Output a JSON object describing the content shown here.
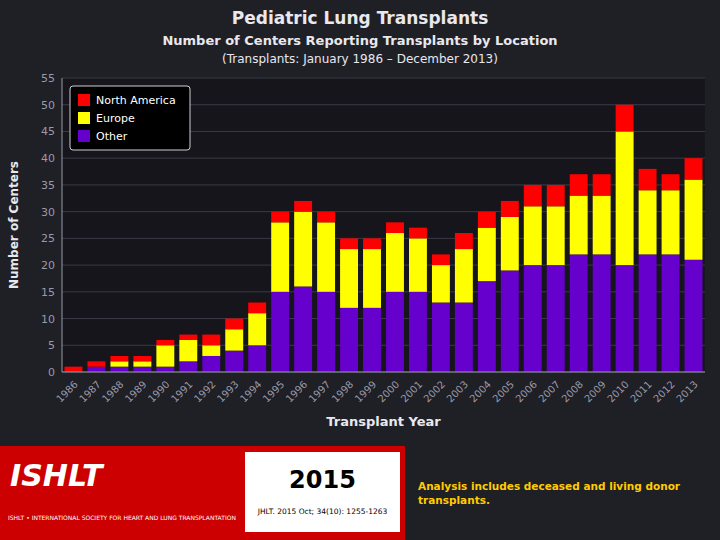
{
  "chart_data": {
    "type": "bar",
    "stacked": true,
    "title": "Pediatric Lung Transplants",
    "subtitle": "Number of Centers Reporting Transplants by Location",
    "annotations": [
      "(Transplants: January 1986 – December 2013)",
      "ISHLT",
      "ISHLT • INTERNATIONAL SOCIETY FOR HEART AND LUNG TRANSPLANTATION",
      "2015",
      "JHLT. 2015 Oct; 34(10): 1255-1263",
      "Analysis includes deceased and living donor\ntransplants."
    ],
    "xlabel": "Transplant Year",
    "ylabel": "Number of Centers",
    "categories": [
      "1986",
      "1987",
      "1988",
      "1989",
      "1990",
      "1991",
      "1992",
      "1993",
      "1994",
      "1995",
      "1996",
      "1997",
      "1998",
      "1999",
      "2000",
      "2001",
      "2002",
      "2003",
      "2004",
      "2005",
      "2006",
      "2007",
      "2008",
      "2009",
      "2010",
      "2011",
      "2012",
      "2013"
    ],
    "series": [
      {
        "name": "Other",
        "color": "#6600cc",
        "values": [
          0,
          1,
          1,
          1,
          1,
          2,
          3,
          4,
          5,
          15,
          16,
          15,
          12,
          12,
          15,
          15,
          13,
          13,
          17,
          19,
          20,
          20,
          22,
          22,
          20,
          22,
          22,
          21
        ]
      },
      {
        "name": "Europe",
        "color": "#ffff00",
        "values": [
          0,
          0,
          1,
          1,
          4,
          4,
          2,
          4,
          6,
          13,
          14,
          13,
          11,
          11,
          11,
          10,
          7,
          10,
          10,
          10,
          11,
          11,
          11,
          11,
          25,
          12,
          12,
          15
        ]
      },
      {
        "name": "North America",
        "color": "#ff0000",
        "values": [
          1,
          1,
          1,
          1,
          1,
          1,
          2,
          2,
          2,
          2,
          2,
          2,
          2,
          2,
          2,
          2,
          2,
          3,
          3,
          3,
          4,
          4,
          4,
          4,
          5,
          4,
          3,
          4
        ]
      }
    ],
    "ylim": [
      0,
      55
    ],
    "yticks": [
      0,
      5,
      10,
      15,
      20,
      25,
      30,
      35,
      40,
      45,
      50,
      55
    ],
    "grid": true,
    "legend": "upper left"
  }
}
